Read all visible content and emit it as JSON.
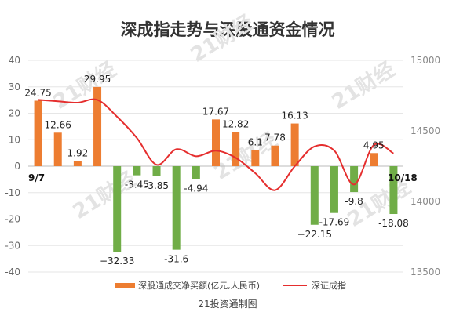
{
  "chart_data": {
    "type": "bar",
    "title": "深成指走势与深股通资金情况",
    "watermark": "21财经",
    "footer": "21投资通制图",
    "start_label": "9/7",
    "end_label": "10/18",
    "left_axis": {
      "ylim": [
        -40,
        40
      ],
      "ticks": [
        -40,
        -30,
        -20,
        -10,
        0,
        10,
        20,
        30,
        40
      ]
    },
    "right_axis": {
      "ylim": [
        13500,
        15000
      ],
      "ticks": [
        13500,
        14000,
        14500,
        15000
      ]
    },
    "colors": {
      "positive": "#ed7d31",
      "negative": "#70ad47",
      "line": "#e52e2e"
    },
    "legend_position": "bottom",
    "series": [
      {
        "name": "深股通成交净买额(亿元,人民币)",
        "type": "bar",
        "axis": "left",
        "values": [
          24.75,
          12.66,
          1.92,
          29.95,
          -32.33,
          -3.45,
          -3.85,
          -31.6,
          -4.94,
          17.67,
          12.82,
          6.1,
          7.78,
          16.13,
          -22.15,
          -17.69,
          -9.8,
          4.95,
          -18.08
        ],
        "labels": [
          "24.75",
          "12.66",
          "1.92",
          "29.95",
          "−32.33",
          "-3.45",
          "-3.85",
          "-31.6",
          "-4.94",
          "17.67",
          "12.82",
          "6.1",
          "7.78",
          "16.13",
          "−22.15",
          "-17.69",
          "-9.8",
          "4.95",
          "-18.08"
        ]
      },
      {
        "name": "深证成指",
        "type": "line",
        "axis": "right",
        "values": [
          14720,
          14710,
          14700,
          14720,
          14600,
          14450,
          14260,
          14370,
          14320,
          14360,
          14310,
          14200,
          14080,
          14250,
          14390,
          14360,
          14120,
          14400,
          14340
        ]
      }
    ]
  }
}
